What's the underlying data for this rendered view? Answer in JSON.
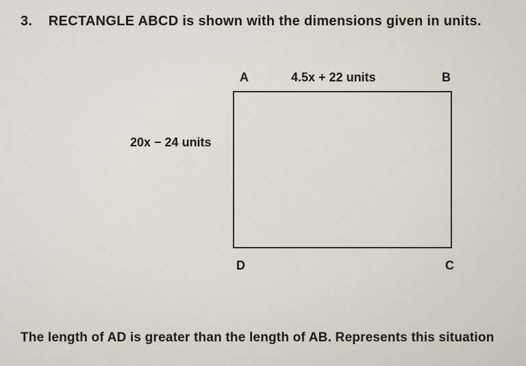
{
  "question": {
    "number": "3.",
    "text": "RECTANGLE ABCD is shown with the dimensions given in units."
  },
  "diagram": {
    "vertices": {
      "topLeft": "A",
      "topRight": "B",
      "bottomRight": "C",
      "bottomLeft": "D"
    },
    "dimensions": {
      "top": "4.5x + 22 units",
      "left": "20x − 24 units"
    },
    "rectangle": {
      "border_color": "#2a2a2a",
      "border_width": 2
    }
  },
  "prompt": "The length of AD is greater than the length of AB. Represents this situation",
  "colors": {
    "text": "#1a1a1a",
    "background_start": "#e8e6e0",
    "background_end": "#d0ccc2"
  },
  "typography": {
    "header_fontsize": 20,
    "label_fontsize": 18,
    "prompt_fontsize": 19,
    "font_weight": "bold",
    "font_family": "Arial"
  }
}
